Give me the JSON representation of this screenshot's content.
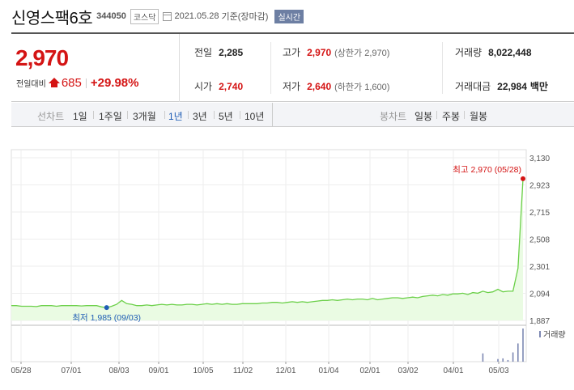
{
  "header": {
    "stock_name": "신영스팩6호",
    "stock_code": "344050",
    "market": "코스닥",
    "date": "2021.05.28",
    "date_note": "기준(장마감)",
    "realtime": "실시간"
  },
  "price": {
    "current": "2,970",
    "change_label": "전일대비",
    "change_value": "685",
    "change_pct": "+29.98%"
  },
  "stats": {
    "prev_label": "전일",
    "prev_value": "2,285",
    "open_label": "시가",
    "open_value": "2,740",
    "high_label": "고가",
    "high_value": "2,970",
    "upper_limit": "(상한가 2,970)",
    "low_label": "저가",
    "low_value": "2,640",
    "lower_limit": "(하한가 1,600)",
    "volume_label": "거래량",
    "volume_value": "8,022,448",
    "amount_label": "거래대금",
    "amount_value": "22,984",
    "amount_unit": "백만"
  },
  "range": {
    "line_title": "선차트",
    "line_options": [
      "1일",
      "1주일",
      "3개월",
      "1년",
      "3년",
      "5년",
      "10년"
    ],
    "line_active": "1년",
    "candle_title": "봉차트",
    "candle_options": [
      "일봉",
      "주봉",
      "월봉"
    ]
  },
  "colors": {
    "up": "#d41414",
    "line": "#6cd04a",
    "fill": "#eafbe3",
    "low_marker": "#1f5db5"
  },
  "chart_data": {
    "type": "area",
    "ylim": [
      1887,
      3130
    ],
    "y_ticks": [
      "3,130",
      "2,923",
      "2,715",
      "2,508",
      "2,301",
      "2,094",
      "1,887"
    ],
    "x_ticks": [
      "05/28",
      "07/01",
      "08/03",
      "09/01",
      "10/05",
      "11/02",
      "12/01",
      "01/04",
      "02/01",
      "03/02",
      "04/01",
      "05/03"
    ],
    "high_label": "최고 2,970 (05/28)",
    "low_label": "최저 1,985 (09/03)",
    "high_value": 2970,
    "low_value": 1985,
    "volume_label": "거래량",
    "series": [
      {
        "values": [
          2000,
          2000,
          1995,
          1995,
          1995,
          1993,
          2000,
          2000,
          2000,
          1995,
          2000,
          2000,
          2000,
          2000,
          1998,
          2000,
          2000,
          2000,
          1990,
          1985,
          1995,
          2010,
          2040,
          2015,
          2010,
          2000,
          2000,
          2005,
          2000,
          2005,
          2010,
          2005,
          2010,
          2005,
          2005,
          2010,
          2010,
          2005,
          2010,
          2015,
          2010,
          2015,
          2010,
          2015,
          2010,
          2010,
          2015,
          2015,
          2015,
          2015,
          2020,
          2020,
          2025,
          2025,
          2020,
          2025,
          2030,
          2025,
          2030,
          2025,
          2030,
          2035,
          2040,
          2040,
          2045,
          2040,
          2045,
          2050,
          2045,
          2050,
          2050,
          2045,
          2055,
          2045,
          2050,
          2055,
          2060,
          2060,
          2055,
          2060,
          2065,
          2060,
          2070,
          2075,
          2080,
          2075,
          2085,
          2080,
          2090,
          2090,
          2095,
          2085,
          2100,
          2095,
          2110,
          2100,
          2105,
          2125,
          2105,
          2110,
          2110,
          2285,
          2970
        ]
      }
    ],
    "volume": [
      0,
      0,
      0,
      0,
      0,
      0,
      0,
      0,
      0,
      0,
      0,
      0,
      0,
      0,
      0,
      0,
      0,
      0,
      0,
      0,
      0,
      0,
      0,
      0,
      0,
      0,
      0,
      0,
      0,
      0,
      0,
      0,
      0,
      0,
      0,
      0,
      0,
      0,
      0,
      0,
      0,
      0,
      0,
      0,
      0,
      0,
      0,
      0,
      0,
      0,
      0,
      0,
      0,
      0,
      0,
      0,
      0,
      0,
      0,
      0,
      0,
      0,
      0,
      0,
      0,
      0,
      0,
      0,
      0,
      0,
      0,
      0,
      0,
      0,
      0,
      0,
      0,
      0,
      0,
      0,
      0,
      0,
      0,
      0,
      0,
      0,
      0,
      0,
      0,
      0,
      0,
      0,
      0,
      0,
      0.25,
      0,
      0,
      0.08,
      0.1,
      0.05,
      0.28,
      0.55,
      1.0
    ]
  }
}
